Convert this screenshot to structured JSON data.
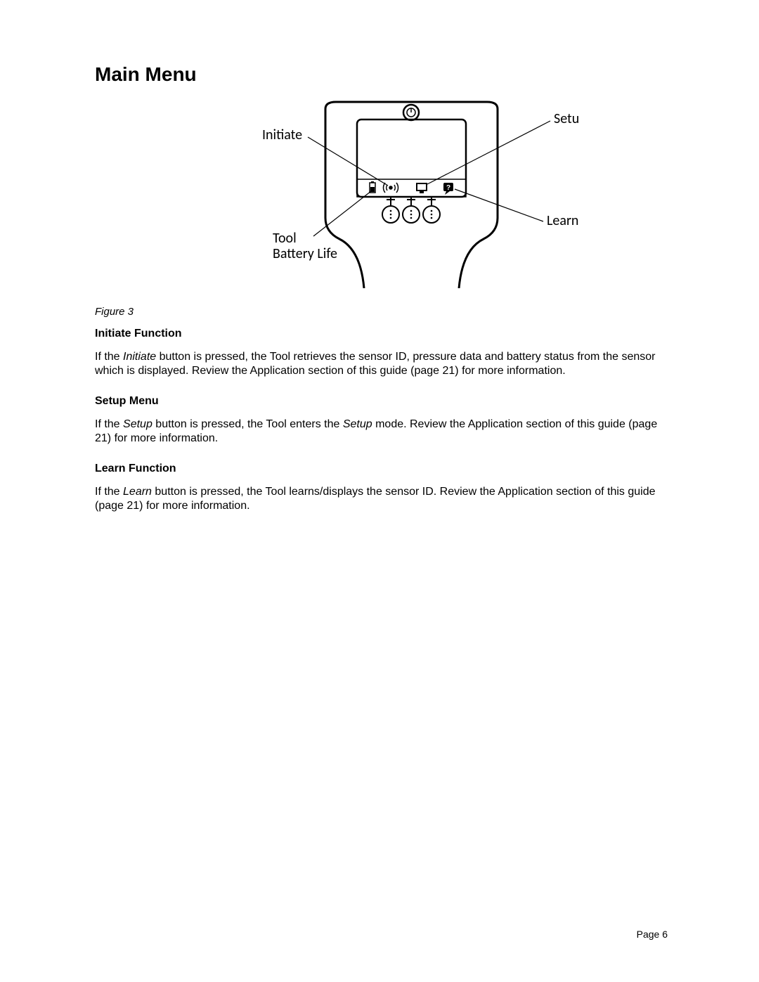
{
  "heading": "Main Menu",
  "figure": {
    "caption": "Figure 3",
    "labels": {
      "initiate": "Initiate",
      "setup": "Setup",
      "learn": "Learn",
      "tool_battery_top": "Tool",
      "tool_battery_bottom": "Battery Life"
    },
    "style": {
      "stroke": "#000000",
      "stroke_width_outline": 3,
      "stroke_width_line": 1.5,
      "label_fontsize": 20,
      "label_fontfamily": "Calibri, Arial, sans-serif"
    }
  },
  "sections": {
    "initiate": {
      "heading": "Initiate Function",
      "para_parts": [
        {
          "text": "If the ",
          "italic": false
        },
        {
          "text": "Initiate",
          "italic": true
        },
        {
          "text": " button is pressed, the Tool retrieves the sensor ID, pressure data and battery status from the sensor which is displayed.  Review the Application section of this guide (page 21) for more information.",
          "italic": false
        }
      ]
    },
    "setup": {
      "heading": "Setup Menu",
      "para_parts": [
        {
          "text": "If the ",
          "italic": false
        },
        {
          "text": "Setup",
          "italic": true
        },
        {
          "text": " button is pressed, the Tool enters the ",
          "italic": false
        },
        {
          "text": "Setup",
          "italic": true
        },
        {
          "text": " mode.  Review the Application section of this guide (page 21) for more information.",
          "italic": false
        }
      ]
    },
    "learn": {
      "heading": "Learn Function",
      "para_parts": [
        {
          "text": "If the ",
          "italic": false
        },
        {
          "text": "Learn",
          "italic": true
        },
        {
          "text": " button is pressed, the Tool learns/displays the sensor ID.  Review the Application section of this guide (page 21) for more information.",
          "italic": false
        }
      ]
    }
  },
  "page_number_label": "Page 6"
}
